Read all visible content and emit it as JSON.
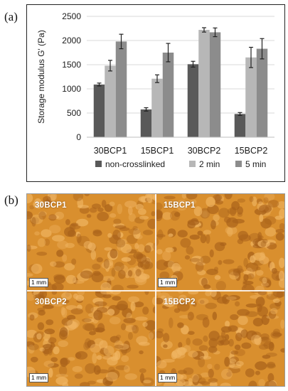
{
  "panel_a_label": "(a)",
  "panel_b_label": "(b)",
  "chart_data": {
    "type": "bar",
    "ylabel": "Storage modulus G' (Pa)",
    "ylim": [
      0,
      2500
    ],
    "yticks": [
      0,
      500,
      1000,
      1500,
      2000,
      2500
    ],
    "grid": "horizontal",
    "legend_position": "bottom",
    "categories": [
      "30BCP1",
      "15BCP1",
      "30BCP2",
      "15BCP2"
    ],
    "series": [
      {
        "name": "non-crosslinked",
        "color": "#595959",
        "values": [
          1090,
          575,
          1510,
          480
        ],
        "errors": [
          30,
          35,
          60,
          30
        ]
      },
      {
        "name": "2 min",
        "color": "#b7b7b7",
        "values": [
          1480,
          1210,
          2220,
          1650
        ],
        "errors": [
          110,
          80,
          45,
          210
        ]
      },
      {
        "name": "5 min",
        "color": "#8c8c8c",
        "values": [
          1980,
          1750,
          2170,
          1830
        ],
        "errors": [
          150,
          190,
          90,
          210
        ]
      }
    ]
  },
  "micrographs": {
    "tiles": [
      {
        "label": "30BCP1",
        "scale": "1 mm"
      },
      {
        "label": "15BCP1",
        "scale": "1 mm"
      },
      {
        "label": "30BCP2",
        "scale": "1 mm"
      },
      {
        "label": "15BCP2",
        "scale": "1 mm"
      }
    ],
    "colors": {
      "base": "#d98f2e",
      "dark": "#a8611a",
      "light": "#f0b563"
    }
  }
}
